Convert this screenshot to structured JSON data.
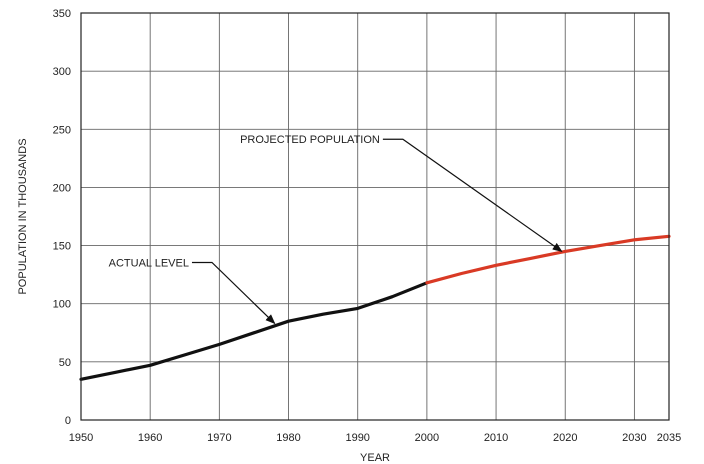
{
  "chart_data": {
    "type": "line",
    "xlabel": "YEAR",
    "ylabel": "POPULATION IN  THOUSANDS",
    "xlim": [
      1950,
      2035
    ],
    "ylim": [
      0,
      350
    ],
    "x_ticks": [
      1950,
      1960,
      1970,
      1980,
      1990,
      2000,
      2010,
      2020,
      2030,
      2035
    ],
    "x_tick_labels": [
      "1950",
      "1960",
      "1970",
      "1980",
      "1990",
      "2000",
      "2010",
      "2020",
      "2030",
      "2035"
    ],
    "y_ticks": [
      0,
      50,
      100,
      150,
      200,
      250,
      300,
      350
    ],
    "y_tick_labels": [
      "0",
      "50",
      "100",
      "150",
      "200",
      "250",
      "300",
      "350"
    ],
    "grid": true,
    "series": [
      {
        "name": "ACTUAL LEVEL",
        "color": "#111111",
        "x": [
          1950,
          1955,
          1960,
          1965,
          1970,
          1975,
          1980,
          1985,
          1990,
          1995,
          2000
        ],
        "y": [
          35,
          41,
          47,
          56,
          65,
          75,
          85,
          91,
          96,
          106,
          118
        ]
      },
      {
        "name": "PROJECTED POPULATION",
        "color": "#d93a25",
        "x": [
          2000,
          2005,
          2010,
          2015,
          2020,
          2025,
          2030,
          2035
        ],
        "y": [
          118,
          126,
          133,
          139,
          145,
          150,
          155,
          158
        ]
      }
    ],
    "annotations": [
      {
        "text": "ACTUAL LEVEL",
        "label_at": [
          1954,
          132
        ],
        "arrow_to": [
          1978,
          83
        ]
      },
      {
        "text": "PROJECTED POPULATION",
        "label_at": [
          1973,
          238
        ],
        "arrow_to": [
          2019.5,
          145
        ]
      }
    ]
  }
}
